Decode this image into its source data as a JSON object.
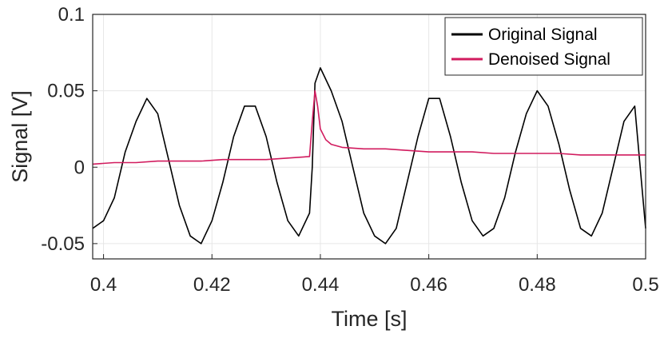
{
  "chart_data": {
    "type": "line",
    "title": "",
    "xlabel": "Time [s]",
    "ylabel": "Signal [V]",
    "xlim": [
      0.398,
      0.5
    ],
    "ylim": [
      -0.06,
      0.1
    ],
    "xticks": [
      0.4,
      0.42,
      0.44,
      0.46,
      0.48,
      0.5
    ],
    "xtick_labels": [
      "0.4",
      "0.42",
      "0.44",
      "0.46",
      "0.48",
      "0.5"
    ],
    "yticks": [
      -0.05,
      0,
      0.05,
      0.1
    ],
    "ytick_labels": [
      "-0.05",
      "0",
      "0.05",
      "0.1"
    ],
    "grid": true,
    "legend_position": "top-right",
    "series": [
      {
        "name": "Original Signal",
        "color": "#000000",
        "x": [
          0.398,
          0.4,
          0.402,
          0.404,
          0.406,
          0.408,
          0.41,
          0.412,
          0.414,
          0.416,
          0.418,
          0.42,
          0.422,
          0.424,
          0.426,
          0.428,
          0.43,
          0.432,
          0.434,
          0.436,
          0.438,
          0.4385,
          0.439,
          0.44,
          0.442,
          0.444,
          0.446,
          0.448,
          0.45,
          0.452,
          0.454,
          0.456,
          0.458,
          0.46,
          0.462,
          0.464,
          0.466,
          0.468,
          0.47,
          0.472,
          0.474,
          0.476,
          0.478,
          0.48,
          0.482,
          0.484,
          0.486,
          0.488,
          0.49,
          0.492,
          0.494,
          0.496,
          0.498,
          0.5
        ],
        "y": [
          -0.04,
          -0.035,
          -0.02,
          0.01,
          0.03,
          0.045,
          0.035,
          0.005,
          -0.025,
          -0.045,
          -0.05,
          -0.035,
          -0.01,
          0.02,
          0.04,
          0.04,
          0.02,
          -0.01,
          -0.035,
          -0.045,
          -0.03,
          0.0,
          0.055,
          0.065,
          0.05,
          0.03,
          0.0,
          -0.03,
          -0.045,
          -0.05,
          -0.04,
          -0.01,
          0.02,
          0.045,
          0.045,
          0.02,
          -0.01,
          -0.035,
          -0.045,
          -0.04,
          -0.02,
          0.01,
          0.035,
          0.05,
          0.04,
          0.015,
          -0.015,
          -0.04,
          -0.045,
          -0.03,
          0.0,
          0.03,
          0.04,
          -0.04
        ]
      },
      {
        "name": "Denoised Signal",
        "color": "#d11b5e",
        "x": [
          0.398,
          0.402,
          0.406,
          0.41,
          0.414,
          0.418,
          0.422,
          0.426,
          0.43,
          0.434,
          0.438,
          0.4385,
          0.439,
          0.4395,
          0.44,
          0.441,
          0.442,
          0.444,
          0.448,
          0.452,
          0.456,
          0.46,
          0.464,
          0.468,
          0.472,
          0.476,
          0.48,
          0.484,
          0.488,
          0.492,
          0.496,
          0.5
        ],
        "y": [
          0.002,
          0.003,
          0.003,
          0.004,
          0.004,
          0.004,
          0.005,
          0.005,
          0.005,
          0.006,
          0.007,
          0.03,
          0.05,
          0.04,
          0.025,
          0.018,
          0.015,
          0.013,
          0.012,
          0.012,
          0.011,
          0.01,
          0.01,
          0.01,
          0.009,
          0.009,
          0.009,
          0.009,
          0.008,
          0.008,
          0.008,
          0.008
        ]
      }
    ]
  }
}
